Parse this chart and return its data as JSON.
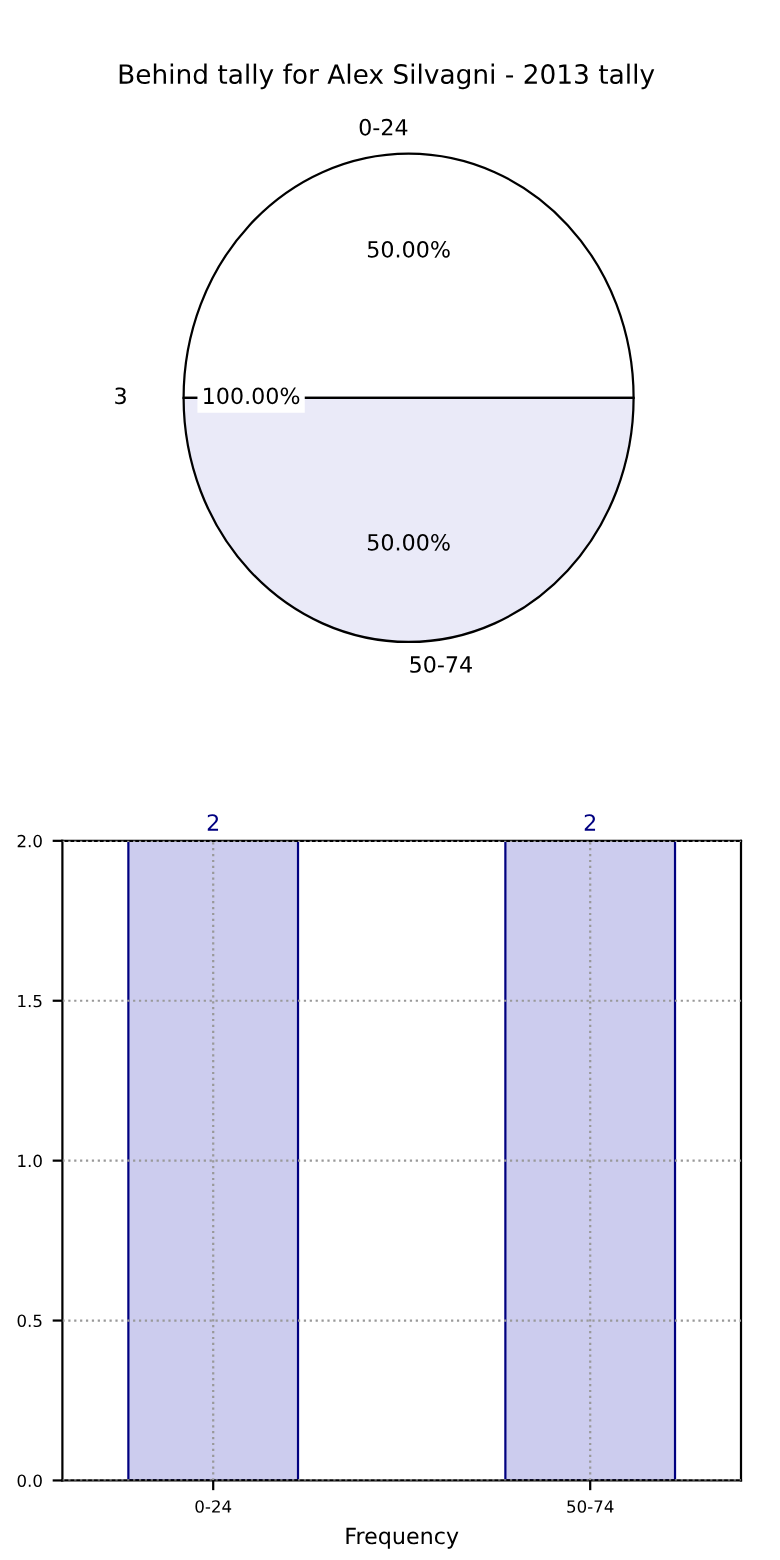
{
  "chart_data": [
    {
      "type": "pie",
      "title": "Behind tally for Alex Silvagni - 2013 tally",
      "categories": [
        "0-24",
        "50-74"
      ],
      "values": [
        50,
        50
      ],
      "value_labels": [
        "50.00%",
        "50.00%"
      ],
      "colors": [
        "#ffffff",
        "#eaeaf8"
      ],
      "annotations": [
        "3",
        "100.00%"
      ]
    },
    {
      "type": "bar",
      "categories": [
        "0-24",
        "50-74"
      ],
      "values": [
        2,
        2
      ],
      "color": "#ccccee",
      "xlabel": "Frequency",
      "ylim": [
        0,
        2
      ],
      "yticks": [
        {
          "value": 0,
          "label": "0.0"
        },
        {
          "value": 0.5,
          "label": "0.5"
        },
        {
          "value": 1,
          "label": "1.0"
        },
        {
          "value": 1.5,
          "label": "1.5"
        },
        {
          "value": 2,
          "label": "2.0"
        }
      ],
      "grid": true,
      "line_style": "dotted",
      "data_labels": true
    }
  ]
}
